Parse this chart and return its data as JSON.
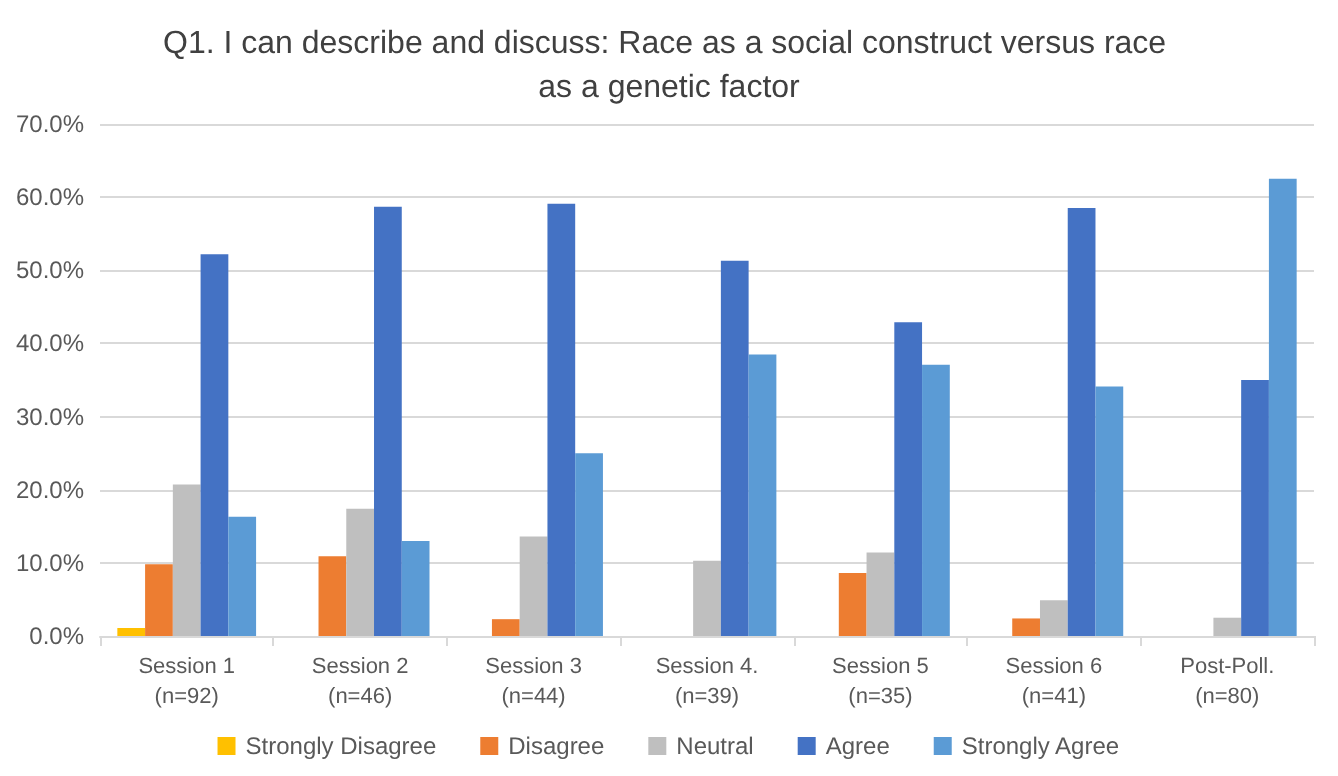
{
  "chart_data": {
    "type": "bar",
    "title": "Q1. I can describe and discuss: Race as a social construct versus race as a genetic factor",
    "categories": [
      "Session 1\n(n=92)",
      "Session 2\n(n=46)",
      "Session 3\n(n=44)",
      "Session 4.\n(n=39)",
      "Session 5\n(n=35)",
      "Session 6\n(n=41)",
      "Post-Poll.\n(n=80)"
    ],
    "series": [
      {
        "name": "Strongly Disagree",
        "color": "#ffc000",
        "values": [
          1.1,
          0,
          0,
          0,
          0,
          0,
          0
        ]
      },
      {
        "name": "Disagree",
        "color": "#ed7d31",
        "values": [
          9.8,
          10.9,
          2.3,
          0,
          8.6,
          2.4,
          0
        ]
      },
      {
        "name": "Neutral",
        "color": "#bfbfbf",
        "values": [
          20.7,
          17.4,
          13.6,
          10.3,
          11.4,
          4.9,
          2.5
        ]
      },
      {
        "name": "Agree",
        "color": "#4472c4",
        "values": [
          52.2,
          58.7,
          59.1,
          51.3,
          42.9,
          58.5,
          35.0
        ]
      },
      {
        "name": "Strongly Agree",
        "color": "#5b9bd5",
        "values": [
          16.3,
          13.0,
          25.0,
          38.5,
          37.1,
          34.1,
          62.5
        ]
      }
    ],
    "ylim": [
      0,
      70
    ],
    "yticks": [
      {
        "value": 0,
        "label": "0.0%"
      },
      {
        "value": 10,
        "label": "10.0%"
      },
      {
        "value": 20,
        "label": "20.0%"
      },
      {
        "value": 30,
        "label": "30.0%"
      },
      {
        "value": 40,
        "label": "40.0%"
      },
      {
        "value": 50,
        "label": "50.0%"
      },
      {
        "value": 60,
        "label": "60.0%"
      },
      {
        "value": 70,
        "label": "70.0%"
      }
    ],
    "grid": "y",
    "legend": "bottom"
  }
}
